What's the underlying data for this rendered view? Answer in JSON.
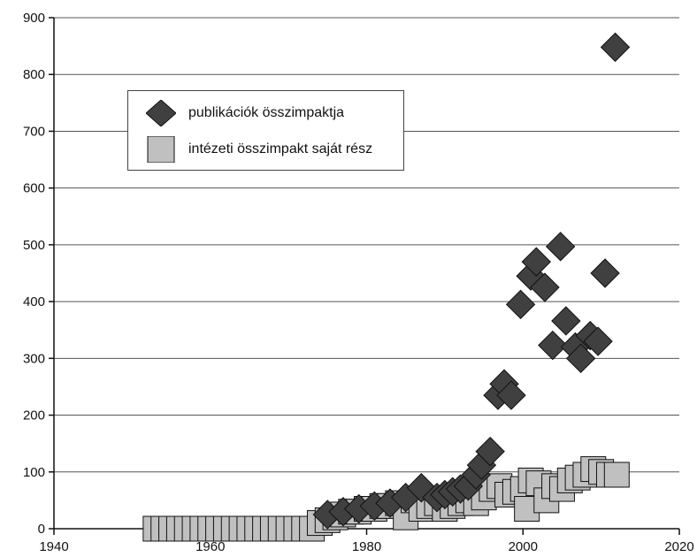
{
  "chart_data": {
    "type": "scatter",
    "title": "",
    "xlabel": "",
    "ylabel": "",
    "xlim": [
      1940,
      2020
    ],
    "ylim": [
      0,
      900
    ],
    "x_ticks": [
      1940,
      1960,
      1980,
      2000,
      2020
    ],
    "y_ticks": [
      0,
      100,
      200,
      300,
      400,
      500,
      600,
      700,
      800,
      900
    ],
    "grid": "horizontal",
    "legend_placement": "upper-left",
    "series": [
      {
        "name": "publikációk összimpaktja",
        "marker": "diamond",
        "color": "#404040",
        "points": [
          [
            1975,
            25
          ],
          [
            1977,
            30
          ],
          [
            1979,
            35
          ],
          [
            1981,
            40
          ],
          [
            1983,
            45
          ],
          [
            1985,
            55
          ],
          [
            1987,
            72
          ],
          [
            1989,
            55
          ],
          [
            1990,
            60
          ],
          [
            1991,
            65
          ],
          [
            1992,
            70
          ],
          [
            1993,
            75
          ],
          [
            1994,
            95
          ],
          [
            1994.7,
            112
          ],
          [
            1995.8,
            136
          ],
          [
            1996.8,
            235
          ],
          [
            1997.6,
            255
          ],
          [
            1998.5,
            235
          ],
          [
            1999.7,
            395
          ],
          [
            2001.0,
            445
          ],
          [
            2001.7,
            470
          ],
          [
            2002.8,
            425
          ],
          [
            2003.8,
            323
          ],
          [
            2004.8,
            497
          ],
          [
            2005.5,
            366
          ],
          [
            2006.7,
            320
          ],
          [
            2007.4,
            300
          ],
          [
            2008.6,
            340
          ],
          [
            2009.6,
            330
          ],
          [
            2010.5,
            450
          ],
          [
            2011.8,
            848
          ]
        ]
      },
      {
        "name": "intézeti összimpakt saját rész",
        "marker": "square",
        "color": "#c0c0c0",
        "points": [
          [
            1953,
            0
          ],
          [
            1954,
            0
          ],
          [
            1955,
            0
          ],
          [
            1956,
            0
          ],
          [
            1957,
            0
          ],
          [
            1958,
            0
          ],
          [
            1959,
            0
          ],
          [
            1960,
            0
          ],
          [
            1961,
            0
          ],
          [
            1962,
            0
          ],
          [
            1963,
            0
          ],
          [
            1964,
            0
          ],
          [
            1965,
            0
          ],
          [
            1966,
            0
          ],
          [
            1967,
            0
          ],
          [
            1968,
            0
          ],
          [
            1969,
            0
          ],
          [
            1970,
            0
          ],
          [
            1971,
            0
          ],
          [
            1972,
            0
          ],
          [
            1973,
            0
          ],
          [
            1974,
            10
          ],
          [
            1975,
            15
          ],
          [
            1976,
            20
          ],
          [
            1977,
            25
          ],
          [
            1978,
            30
          ],
          [
            1979,
            30
          ],
          [
            1980,
            35
          ],
          [
            1981,
            35
          ],
          [
            1982,
            40
          ],
          [
            1983,
            40
          ],
          [
            1984,
            45
          ],
          [
            1985,
            20
          ],
          [
            1986,
            50
          ],
          [
            1987,
            35
          ],
          [
            1988,
            40
          ],
          [
            1989,
            45
          ],
          [
            1990,
            35
          ],
          [
            1991,
            40
          ],
          [
            1992,
            45
          ],
          [
            1993,
            50
          ],
          [
            1994,
            45
          ],
          [
            1995,
            55
          ],
          [
            1996,
            70
          ],
          [
            1997,
            75
          ],
          [
            1998,
            60
          ],
          [
            1999,
            65
          ],
          [
            2000,
            70
          ],
          [
            2000.5,
            35
          ],
          [
            2001,
            85
          ],
          [
            2002,
            80
          ],
          [
            2003,
            50
          ],
          [
            2004,
            75
          ],
          [
            2005,
            70
          ],
          [
            2006,
            85
          ],
          [
            2007,
            90
          ],
          [
            2008,
            95
          ],
          [
            2009,
            105
          ],
          [
            2010,
            100
          ],
          [
            2011,
            95
          ],
          [
            2012,
            95
          ]
        ]
      }
    ]
  }
}
